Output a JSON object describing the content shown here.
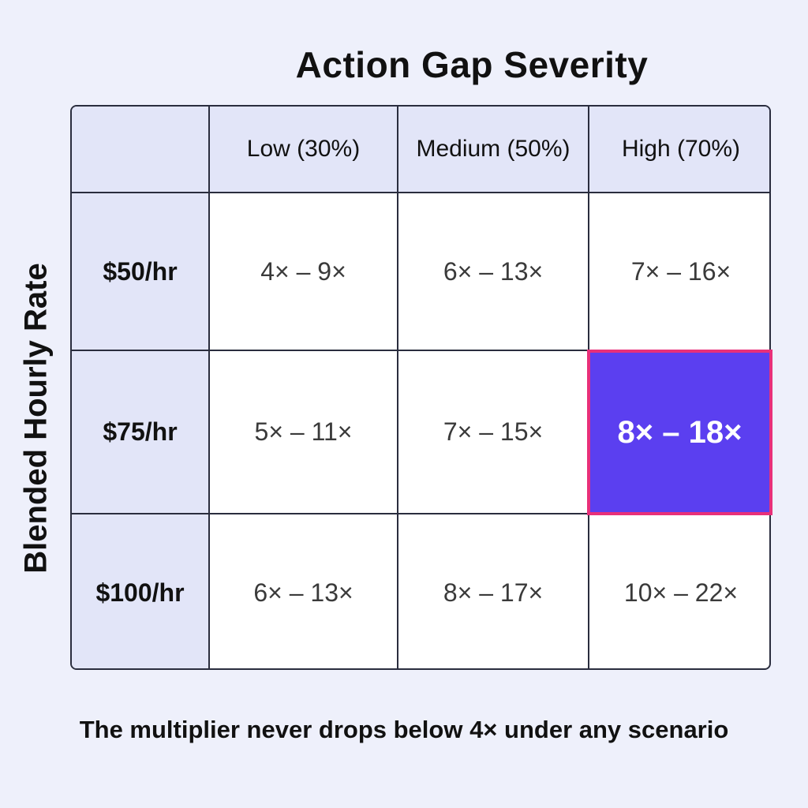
{
  "chart_data": {
    "type": "table",
    "title": "",
    "column_axis_label": "Action Gap Severity",
    "row_axis_label": "Blended Hourly Rate",
    "columns": [
      "Low (30%)",
      "Medium (50%)",
      "High (70%)"
    ],
    "rows": [
      {
        "label": "$50/hr",
        "cells": [
          "4× – 9×",
          "6× – 13×",
          "7× – 16×"
        ]
      },
      {
        "label": "$75/hr",
        "cells": [
          "5× – 11×",
          "7× – 15×",
          "8× – 18×"
        ]
      },
      {
        "label": "$100/hr",
        "cells": [
          "6× – 13×",
          "8× – 17×",
          "10× – 22×"
        ]
      }
    ],
    "highlighted_cell": {
      "row": "$75/hr",
      "column": "High (70%)",
      "value": "8× – 18×"
    },
    "footnote": "The multiplier never drops below 4× under any scenario"
  },
  "colors": {
    "background": "#eef0fb",
    "header_fill": "#e2e5f8",
    "highlight_fill": "#5b3ff0",
    "highlight_border": "#e8307a",
    "grid_line": "#2a2d3e"
  }
}
